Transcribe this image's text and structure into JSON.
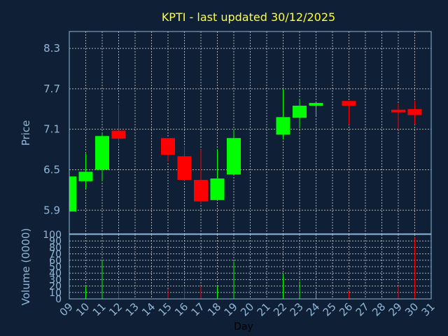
{
  "chart_data": {
    "type": "candlestick",
    "title": "KPTI - last updated 30/12/2025",
    "xlabel": "Day",
    "price_ylabel": "Price",
    "volume_ylabel": "Volume (0000)",
    "x_ticks": [
      "09",
      "10",
      "11",
      "12",
      "13",
      "14",
      "15",
      "16",
      "17",
      "18",
      "19",
      "20",
      "21",
      "22",
      "23",
      "24",
      "25",
      "26",
      "27",
      "28",
      "29",
      "30",
      "31"
    ],
    "price_ticks": [
      "5.9",
      "6.5",
      "7.1",
      "7.7",
      "8.3"
    ],
    "volume_ticks": [
      "0",
      "10",
      "20",
      "30",
      "40",
      "50",
      "60",
      "70",
      "80",
      "90",
      "100"
    ],
    "price_ylim": [
      5.55,
      8.55
    ],
    "volume_ylim": [
      0,
      100
    ],
    "xlim": [
      9,
      31
    ],
    "up_color": "#00ff00",
    "down_color": "#ff0000",
    "grid": true,
    "candles": [
      {
        "day": 9,
        "open": 5.88,
        "high": 6.4,
        "low": 5.88,
        "close": 6.4,
        "volume": 0
      },
      {
        "day": 10,
        "open": 6.33,
        "high": 6.74,
        "low": 6.22,
        "close": 6.47,
        "volume": 20
      },
      {
        "day": 11,
        "open": 6.5,
        "high": 7.05,
        "low": 6.33,
        "close": 7.0,
        "volume": 60
      },
      {
        "day": 12,
        "open": 7.08,
        "high": 7.47,
        "low": 6.9,
        "close": 6.96,
        "volume": 22
      },
      {
        "day": 15,
        "open": 6.97,
        "high": 6.97,
        "low": 6.62,
        "close": 6.72,
        "volume": 15
      },
      {
        "day": 16,
        "open": 6.7,
        "high": 6.85,
        "low": 6.33,
        "close": 6.35,
        "volume": 18
      },
      {
        "day": 17,
        "open": 6.35,
        "high": 6.8,
        "low": 6.0,
        "close": 6.03,
        "volume": 20
      },
      {
        "day": 18,
        "open": 6.05,
        "high": 6.8,
        "low": 6.05,
        "close": 6.37,
        "volume": 20
      },
      {
        "day": 19,
        "open": 6.43,
        "high": 7.1,
        "low": 6.43,
        "close": 6.97,
        "volume": 58
      },
      {
        "day": 22,
        "open": 7.02,
        "high": 7.7,
        "low": 6.95,
        "close": 7.28,
        "volume": 38
      },
      {
        "day": 23,
        "open": 7.27,
        "high": 7.55,
        "low": 7.12,
        "close": 7.45,
        "volume": 27
      },
      {
        "day": 24,
        "open": 7.45,
        "high": 7.49,
        "low": 7.3,
        "close": 7.49,
        "volume": 10
      },
      {
        "day": 26,
        "open": 7.52,
        "high": 7.52,
        "low": 7.17,
        "close": 7.45,
        "volume": 12
      },
      {
        "day": 29,
        "open": 7.39,
        "high": 7.48,
        "low": 7.1,
        "close": 7.35,
        "volume": 20
      },
      {
        "day": 30,
        "open": 7.4,
        "high": 7.52,
        "low": 7.17,
        "close": 7.31,
        "volume": 95
      }
    ]
  }
}
